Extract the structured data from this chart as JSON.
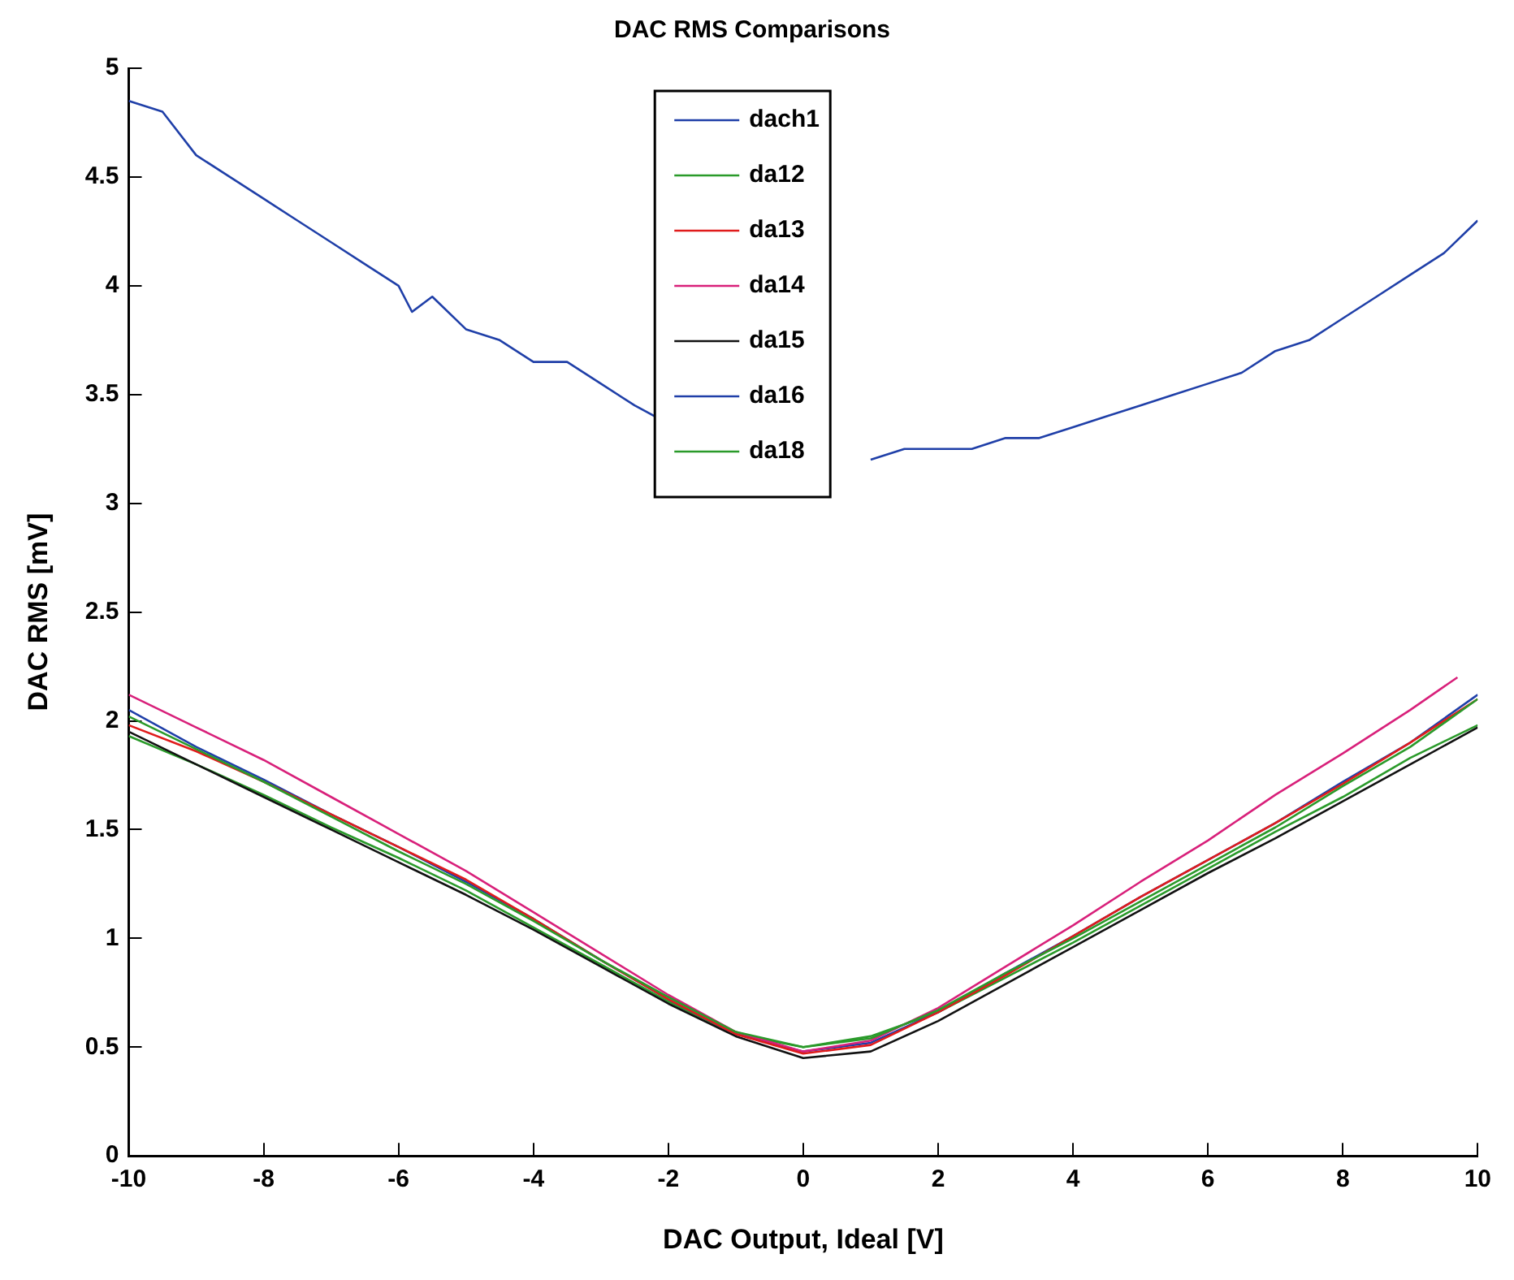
{
  "chart_data": {
    "type": "line",
    "title": "DAC RMS Comparisons",
    "xlabel": "DAC Output, Ideal [V]",
    "ylabel": "DAC RMS [mV]",
    "xlim": [
      -10,
      10
    ],
    "ylim": [
      0,
      5
    ],
    "xticks": [
      -10,
      -8,
      -6,
      -4,
      -2,
      0,
      2,
      4,
      6,
      8,
      10
    ],
    "yticks": [
      0,
      0.5,
      1,
      1.5,
      2,
      2.5,
      3,
      3.5,
      4,
      4.5,
      5
    ],
    "grid": false,
    "legend": "top",
    "marker": "none",
    "line_style": "solid",
    "series": [
      {
        "name": "dach1",
        "color": "#1f3fa8",
        "x": [
          -10,
          -9.5,
          -9,
          -8.5,
          -8,
          -7.5,
          -7,
          -6.5,
          -6,
          -5.8,
          -5.5,
          -5,
          -4.5,
          -4,
          -3.5,
          -3,
          -2.5,
          -2.2,
          0.5,
          1,
          1.5,
          2,
          2.5,
          3,
          3.5,
          4,
          4.5,
          5,
          5.5,
          6,
          6.5,
          7,
          7.5,
          8,
          8.5,
          9,
          9.5,
          10
        ],
        "values": [
          4.85,
          4.8,
          4.6,
          4.5,
          4.4,
          4.3,
          4.2,
          4.1,
          4,
          3.88,
          3.95,
          3.8,
          3.75,
          3.65,
          3.65,
          3.55,
          3.45,
          3.4,
          null,
          3.2,
          3.25,
          3.25,
          3.25,
          3.3,
          3.3,
          3.35,
          3.4,
          3.45,
          3.5,
          3.55,
          3.6,
          3.7,
          3.75,
          3.85,
          3.95,
          4.05,
          4.15,
          4.3
        ]
      },
      {
        "name": "da12",
        "color": "#2a9a2a",
        "x": [
          -10,
          -9,
          -8,
          -7,
          -6,
          -5,
          -4,
          -3,
          -2,
          -1,
          0,
          1,
          2,
          3,
          4,
          5,
          6,
          7,
          8,
          9,
          10
        ],
        "values": [
          2.02,
          1.87,
          1.72,
          1.56,
          1.4,
          1.25,
          1.08,
          0.9,
          0.73,
          0.57,
          0.5,
          0.54,
          0.67,
          0.84,
          1.0,
          1.17,
          1.34,
          1.51,
          1.7,
          1.88,
          2.1
        ]
      },
      {
        "name": "da13",
        "color": "#e01b1b",
        "x": [
          -10,
          -9,
          -8,
          -7,
          -6,
          -5,
          -4,
          -3,
          -2,
          -1,
          0,
          1,
          2,
          3,
          4,
          5,
          6,
          7,
          8,
          9,
          10
        ],
        "values": [
          1.98,
          1.86,
          1.72,
          1.57,
          1.42,
          1.27,
          1.09,
          0.9,
          0.72,
          0.56,
          0.47,
          0.51,
          0.66,
          0.83,
          1.01,
          1.19,
          1.36,
          1.53,
          1.71,
          1.9,
          2.1
        ]
      },
      {
        "name": "da14",
        "color": "#d8207a",
        "x": [
          -10,
          -9,
          -8,
          -7,
          -6,
          -5,
          -4,
          -3,
          -2,
          -1,
          0,
          1,
          2,
          3,
          4,
          5,
          6,
          7,
          8,
          9,
          9.7
        ],
        "values": [
          2.12,
          1.97,
          1.82,
          1.65,
          1.48,
          1.31,
          1.12,
          0.93,
          0.74,
          0.57,
          0.48,
          0.53,
          0.68,
          0.87,
          1.06,
          1.26,
          1.45,
          1.66,
          1.85,
          2.05,
          2.2
        ]
      },
      {
        "name": "da15",
        "color": "#111111",
        "x": [
          -10,
          -9,
          -8,
          -7,
          -6,
          -5,
          -4,
          -3,
          -2,
          -1,
          0,
          1,
          2,
          3,
          4,
          5,
          6,
          7,
          8,
          9,
          10
        ],
        "values": [
          1.95,
          1.8,
          1.65,
          1.5,
          1.35,
          1.2,
          1.04,
          0.87,
          0.7,
          0.55,
          0.45,
          0.48,
          0.62,
          0.79,
          0.96,
          1.13,
          1.3,
          1.46,
          1.63,
          1.8,
          1.97
        ]
      },
      {
        "name": "da16",
        "color": "#1f3fa8",
        "x": [
          -10,
          -9,
          -8,
          -7,
          -6,
          -5,
          -4,
          -3,
          -2,
          -1,
          0,
          1,
          2,
          3,
          4,
          5,
          6,
          7,
          8,
          9,
          10
        ],
        "values": [
          2.05,
          1.88,
          1.73,
          1.57,
          1.42,
          1.26,
          1.09,
          0.9,
          0.72,
          0.56,
          0.48,
          0.52,
          0.66,
          0.84,
          1.01,
          1.19,
          1.36,
          1.53,
          1.72,
          1.9,
          2.12
        ]
      },
      {
        "name": "da18",
        "color": "#2a9a2a",
        "x": [
          -10,
          -9,
          -8,
          -7,
          -6,
          -5,
          -4,
          -3,
          -2,
          -1,
          0,
          1,
          2,
          3,
          4,
          5,
          6,
          7,
          8,
          9,
          10
        ],
        "values": [
          1.93,
          1.8,
          1.66,
          1.51,
          1.37,
          1.22,
          1.05,
          0.88,
          0.71,
          0.56,
          0.5,
          0.55,
          0.66,
          0.82,
          0.98,
          1.15,
          1.32,
          1.49,
          1.65,
          1.83,
          1.98
        ]
      }
    ]
  }
}
